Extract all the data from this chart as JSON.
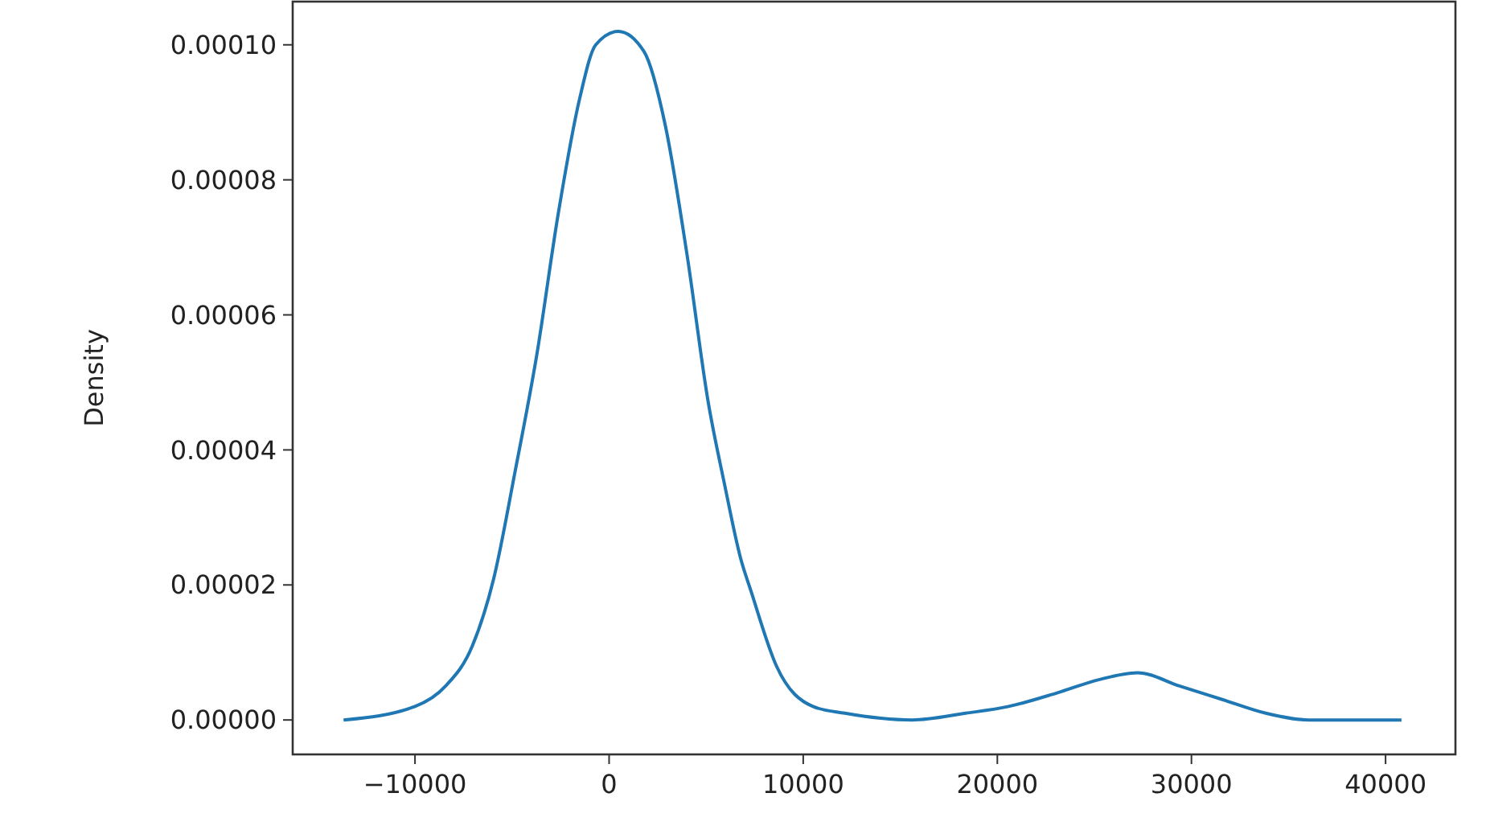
{
  "chart_data": {
    "type": "line",
    "ylabel": "Density",
    "x": [
      -13680,
      -10000,
      -8430,
      -7040,
      -5940,
      -4830,
      -3730,
      -2620,
      -1520,
      -690,
      470,
      1800,
      2900,
      4010,
      5110,
      5940,
      6770,
      7320,
      8620,
      10500,
      12150,
      15610,
      18370,
      20580,
      23070,
      25270,
      27210,
      29410,
      31620,
      33830,
      36040,
      40820
    ],
    "series": [
      {
        "color": "#1f77b4",
        "values": [
          0,
          2e-06,
          5e-06,
          1.1e-05,
          2.1e-05,
          3.7e-05,
          5.4e-05,
          7.5e-05,
          9.2e-05,
          0.0001,
          0.000102,
          9.9e-05,
          8.8e-05,
          6.9e-05,
          4.7e-05,
          3.5e-05,
          2.4e-05,
          1.9e-05,
          8e-06,
          2e-06,
          1e-06,
          0,
          1e-06,
          2e-06,
          4e-06,
          6e-06,
          7e-06,
          5e-06,
          3e-06,
          1e-06,
          0,
          0
        ]
      }
    ],
    "xlim": [
      -16300,
      43600
    ],
    "ylim": [
      -5.1e-06,
      0.0001064
    ],
    "xticks": [
      -10000,
      0,
      10000,
      20000,
      30000,
      40000
    ],
    "yticks": [
      {
        "value": 0,
        "label": "0.00000"
      },
      {
        "value": 2e-05,
        "label": "0.00002"
      },
      {
        "value": 4e-05,
        "label": "0.00004"
      },
      {
        "value": 6e-05,
        "label": "0.00006"
      },
      {
        "value": 8e-05,
        "label": "0.00008"
      },
      {
        "value": 0.0001,
        "label": "0.00010"
      }
    ],
    "grid": false
  }
}
